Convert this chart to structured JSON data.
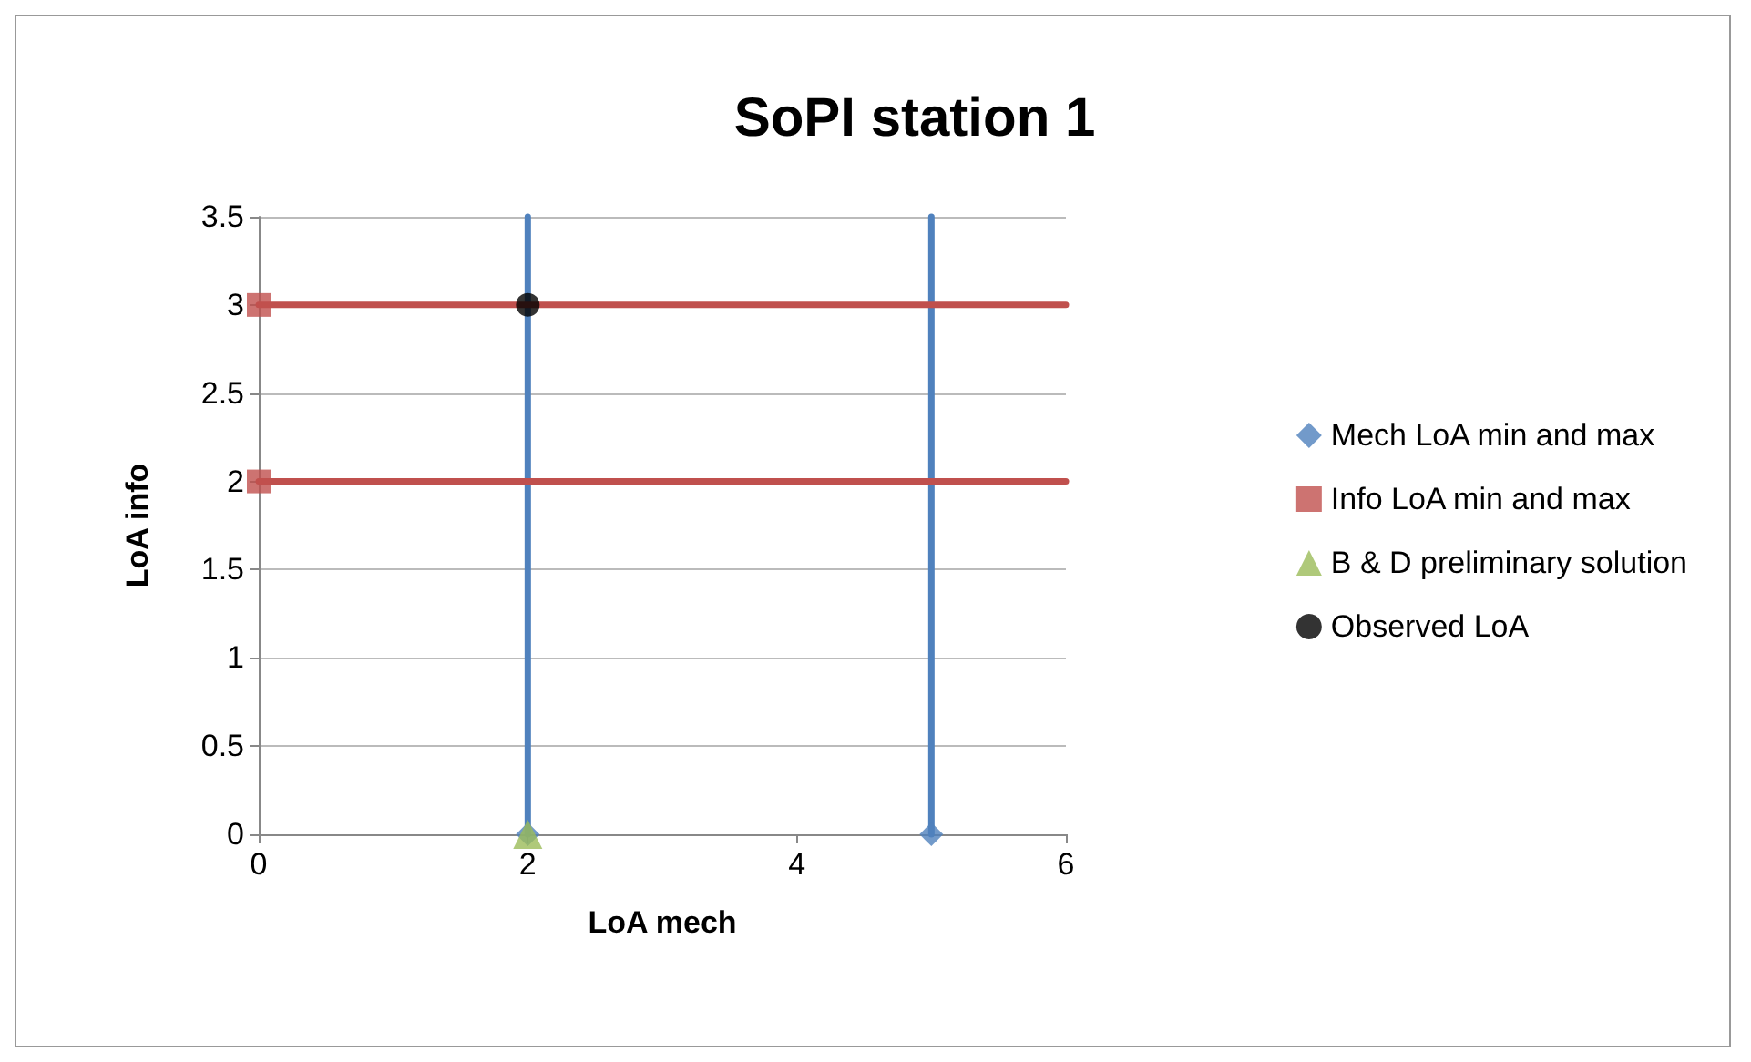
{
  "chart_data": {
    "type": "scatter",
    "title": "SoPI station 1",
    "xlabel": "LoA mech",
    "ylabel": "LoA info",
    "xlim": [
      0,
      6
    ],
    "xticks": [
      0,
      2,
      4,
      6
    ],
    "ylim": [
      0,
      3.5
    ],
    "yticks": [
      0,
      0.5,
      1,
      1.5,
      2,
      2.5,
      3,
      3.5
    ],
    "grid": "y",
    "legend": "right",
    "series": [
      {
        "name": "Mech LoA min and max",
        "color": "#4f81bd",
        "marker": "diamond",
        "x": [
          2,
          5
        ],
        "values": [
          0,
          0
        ],
        "errors": [
          [
            0,
            3.5
          ],
          [
            0,
            3.5
          ]
        ]
      },
      {
        "name": "Info LoA min and max",
        "color": "#c0504d",
        "marker": "square",
        "x": [
          0,
          0
        ],
        "values": [
          3,
          2
        ],
        "xerrors": [
          [
            0,
            6
          ],
          [
            0,
            6
          ]
        ]
      },
      {
        "name": "B & D preliminary solution",
        "color": "#9bbb59",
        "marker": "triangle",
        "x": [
          2
        ],
        "values": [
          0
        ]
      },
      {
        "name": "Observed LoA",
        "color": "#000000",
        "marker": "circle",
        "x": [
          2
        ],
        "values": [
          3
        ]
      }
    ]
  }
}
